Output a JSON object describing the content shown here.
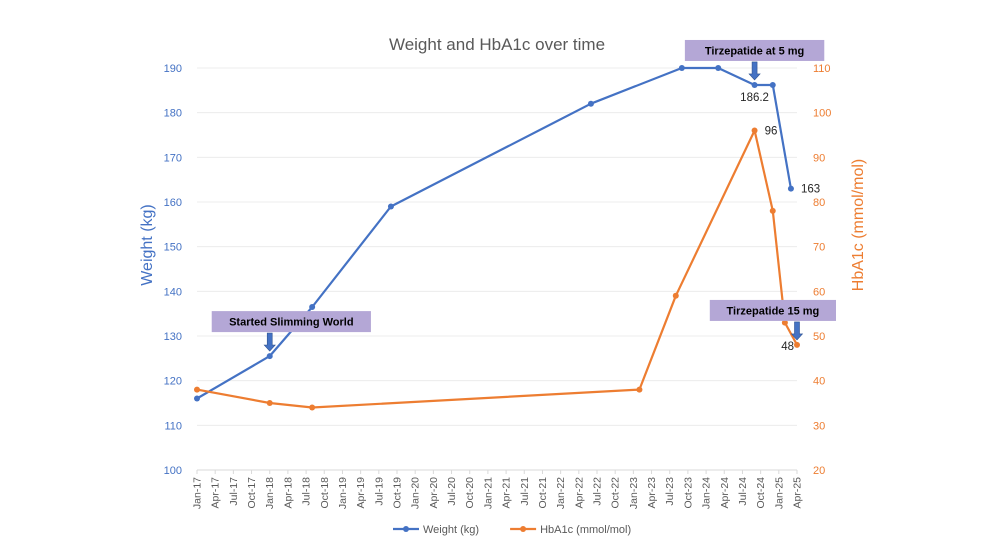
{
  "chart_data": {
    "type": "line",
    "title": "Weight and HbA1c over time",
    "ylabel": "Weight (kg)",
    "y2label": "HbA1c (mmol/mol)",
    "ylim": [
      100,
      190
    ],
    "y2lim": [
      20,
      110
    ],
    "yticks": [
      "100",
      "110",
      "120",
      "130",
      "140",
      "150",
      "160",
      "170",
      "180",
      "190"
    ],
    "y2ticks": [
      "20",
      "30",
      "40",
      "50",
      "60",
      "70",
      "80",
      "90",
      "100",
      "110"
    ],
    "xlim": [
      "2017-01",
      "2025-04"
    ],
    "xticks": [
      "Jan-17",
      "Apr-17",
      "Jul-17",
      "Oct-17",
      "Jan-18",
      "Apr-18",
      "Jul-18",
      "Oct-18",
      "Jan-19",
      "Apr-19",
      "Jul-19",
      "Oct-19",
      "Jan-20",
      "Apr-20",
      "Jul-20",
      "Oct-20",
      "Jan-21",
      "Apr-21",
      "Jul-21",
      "Oct-21",
      "Jan-22",
      "Apr-22",
      "Jul-22",
      "Oct-22",
      "Jan-23",
      "Apr-23",
      "Jul-23",
      "Oct-23",
      "Jan-24",
      "Apr-24",
      "Jul-24",
      "Oct-24",
      "Jan-25",
      "Apr-25"
    ],
    "grid": true,
    "legend": "bottom",
    "series": [
      {
        "name": "Weight (kg)",
        "axis": "left",
        "color": "#4472c4",
        "points": [
          {
            "x": "2017-01",
            "y": 116
          },
          {
            "x": "2018-01",
            "y": 125.5
          },
          {
            "x": "2018-08",
            "y": 136.5
          },
          {
            "x": "2019-09",
            "y": 159
          },
          {
            "x": "2022-06",
            "y": 182
          },
          {
            "x": "2023-09",
            "y": 190
          },
          {
            "x": "2024-03",
            "y": 190
          },
          {
            "x": "2024-09",
            "y": 186.2,
            "label": "186.2"
          },
          {
            "x": "2024-12",
            "y": 186.2
          },
          {
            "x": "2025-03",
            "y": 163,
            "label": "163"
          }
        ]
      },
      {
        "name": "HbA1c (mmol/mol)",
        "axis": "right",
        "color": "#ed7d31",
        "points": [
          {
            "x": "2017-01",
            "y": 38
          },
          {
            "x": "2018-01",
            "y": 35
          },
          {
            "x": "2018-08",
            "y": 34
          },
          {
            "x": "2023-02",
            "y": 38
          },
          {
            "x": "2023-08",
            "y": 59
          },
          {
            "x": "2024-09",
            "y": 96,
            "label": "96"
          },
          {
            "x": "2024-12",
            "y": 78
          },
          {
            "x": "2025-02",
            "y": 53
          },
          {
            "x": "2025-04",
            "y": 48,
            "label": "48"
          }
        ]
      }
    ],
    "annotations": [
      {
        "text": "Started Slimming World",
        "x": "2018-01",
        "y": 125.5,
        "axis": "left"
      },
      {
        "text": "Tirzepatide at 5 mg",
        "x": "2024-09",
        "y": 186.2,
        "axis": "left"
      },
      {
        "text": "Tirzepatide 15 mg",
        "x": "2025-04",
        "y": 48,
        "axis": "right"
      }
    ]
  }
}
